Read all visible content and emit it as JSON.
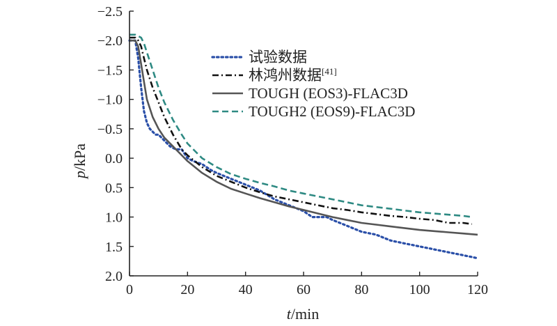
{
  "chart_data": {
    "type": "line",
    "title": "",
    "xlabel": {
      "var": "t",
      "unit": "/min"
    },
    "ylabel": {
      "var": "p",
      "unit": "/kPa"
    },
    "xlim": [
      0,
      120
    ],
    "ylim": [
      -2.5,
      2.0
    ],
    "y_axis_inverted": true,
    "x_ticks": [
      "0",
      "20",
      "40",
      "60",
      "80",
      "100",
      "120"
    ],
    "y_ticks": [
      "−2.5",
      "−2.0",
      "−1.5",
      "−1.0",
      "−0.5",
      "0.0",
      "0.5",
      "1.0",
      "1.5",
      "2.0"
    ],
    "grid": false,
    "legend_position": "top-right",
    "series": [
      {
        "name": "试验数据",
        "legend_sup": "",
        "style": "dotted",
        "color": "#2a4fa8",
        "x": [
          0,
          2,
          3,
          4,
          5,
          6,
          7,
          8,
          9,
          10,
          12,
          14,
          16,
          18,
          20,
          22,
          25,
          28,
          30,
          35,
          40,
          45,
          50,
          55,
          60,
          63,
          65,
          68,
          70,
          75,
          80,
          85,
          90,
          95,
          100,
          105,
          110,
          115,
          120
        ],
        "y": [
          -2.0,
          -2.0,
          -1.7,
          -1.2,
          -0.8,
          -0.6,
          -0.5,
          -0.45,
          -0.4,
          -0.4,
          -0.3,
          -0.2,
          -0.15,
          -0.15,
          0.0,
          0.05,
          0.1,
          0.2,
          0.25,
          0.35,
          0.45,
          0.55,
          0.7,
          0.8,
          0.9,
          1.0,
          1.0,
          1.0,
          1.05,
          1.15,
          1.25,
          1.3,
          1.4,
          1.45,
          1.5,
          1.55,
          1.6,
          1.65,
          1.7
        ]
      },
      {
        "name": "林鸿州数据",
        "legend_sup": "[41]",
        "style": "dashdot",
        "color": "#111111",
        "x": [
          0,
          2,
          3,
          4,
          5,
          6,
          8,
          10,
          12,
          15,
          18,
          20,
          25,
          30,
          35,
          40,
          45,
          50,
          55,
          60,
          65,
          70,
          75,
          80,
          85,
          90,
          95,
          100,
          105,
          110,
          115,
          118
        ],
        "y": [
          -2.05,
          -2.05,
          -2.0,
          -1.9,
          -1.7,
          -1.5,
          -1.2,
          -0.95,
          -0.7,
          -0.4,
          -0.15,
          -0.05,
          0.15,
          0.3,
          0.4,
          0.5,
          0.58,
          0.65,
          0.7,
          0.75,
          0.8,
          0.85,
          0.88,
          0.92,
          0.95,
          0.98,
          1.0,
          1.03,
          1.05,
          1.1,
          1.1,
          1.12
        ]
      },
      {
        "name": "TOUGH (EOS3)-FLAC3D",
        "legend_sup": "",
        "style": "solid",
        "color": "#555555",
        "x": [
          0,
          2,
          3,
          4,
          5,
          6,
          8,
          10,
          12,
          15,
          18,
          20,
          25,
          30,
          35,
          40,
          45,
          50,
          55,
          60,
          65,
          70,
          75,
          80,
          85,
          90,
          95,
          100,
          105,
          110,
          115,
          120
        ],
        "y": [
          -2.0,
          -2.0,
          -1.9,
          -1.6,
          -1.3,
          -1.0,
          -0.7,
          -0.5,
          -0.35,
          -0.2,
          -0.05,
          0.05,
          0.25,
          0.4,
          0.52,
          0.6,
          0.68,
          0.75,
          0.82,
          0.88,
          0.94,
          1.0,
          1.05,
          1.1,
          1.13,
          1.16,
          1.19,
          1.22,
          1.24,
          1.26,
          1.28,
          1.3
        ]
      },
      {
        "name": "TOUGH2 (EOS9)-FLAC3D",
        "legend_sup": "",
        "style": "dashed",
        "color": "#2e8a83",
        "x": [
          0,
          2,
          4,
          5,
          6,
          8,
          10,
          12,
          15,
          18,
          20,
          25,
          30,
          35,
          40,
          45,
          50,
          55,
          60,
          65,
          70,
          75,
          80,
          85,
          90,
          95,
          100,
          105,
          110,
          115,
          118
        ],
        "y": [
          -2.1,
          -2.1,
          -2.05,
          -1.95,
          -1.8,
          -1.5,
          -1.2,
          -0.95,
          -0.65,
          -0.4,
          -0.25,
          0.0,
          0.15,
          0.27,
          0.35,
          0.42,
          0.48,
          0.55,
          0.6,
          0.65,
          0.7,
          0.75,
          0.8,
          0.83,
          0.86,
          0.89,
          0.92,
          0.94,
          0.96,
          0.98,
          1.0
        ]
      }
    ]
  }
}
